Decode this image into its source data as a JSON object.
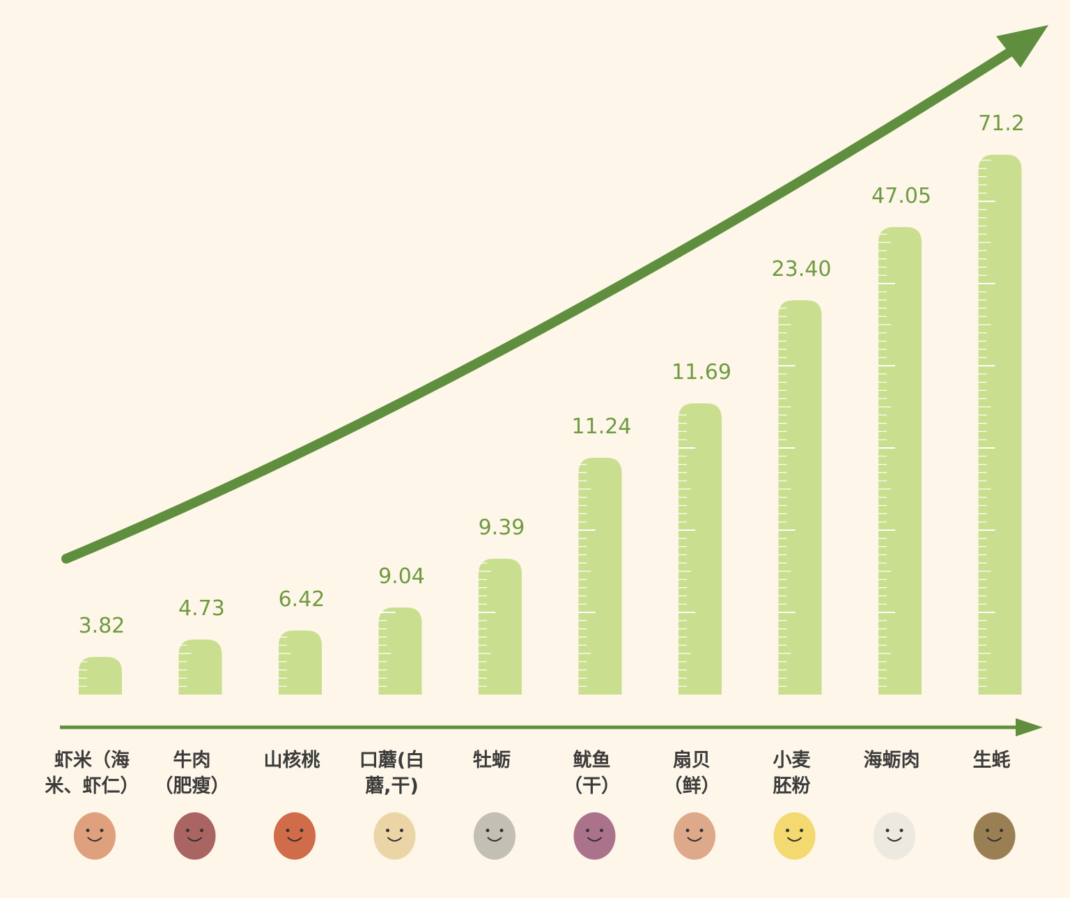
{
  "chart_data": {
    "type": "bar",
    "title": "",
    "xlabel": "",
    "ylabel": "",
    "categories": [
      [
        "虾米（海",
        "米、虾仁）"
      ],
      [
        "牛肉",
        "（肥瘦）"
      ],
      [
        "山核桃"
      ],
      [
        "口蘑(白",
        "蘑,干)"
      ],
      [
        "牡蛎"
      ],
      [
        "鱿鱼",
        "（干）"
      ],
      [
        "扇贝",
        "（鲜）"
      ],
      [
        "小麦",
        "胚粉"
      ],
      [
        "海蛎肉"
      ],
      [
        "生蚝"
      ]
    ],
    "values": [
      3.82,
      4.73,
      6.42,
      9.04,
      9.39,
      11.24,
      11.69,
      23.4,
      47.05,
      71.2
    ],
    "value_labels": [
      "3.82",
      "4.73",
      "6.42",
      "9.04",
      "9.39",
      "11.24",
      "11.69",
      "23.40",
      "47.05",
      "71.2"
    ],
    "icons": [
      "shrimp-icon",
      "beef-icon",
      "walnut-icon",
      "mushroom-icon",
      "oyster-icon",
      "squid-icon",
      "scallop-icon",
      "wheat-germ-icon",
      "oyster-meat-icon",
      "raw-oyster-icon"
    ],
    "grid": false,
    "legend": "none",
    "colors": {
      "bar": "#c9df8f",
      "arrow": "#5f8f3e",
      "value_text": "#6f9a3f",
      "background": "#fdf6e9"
    }
  }
}
